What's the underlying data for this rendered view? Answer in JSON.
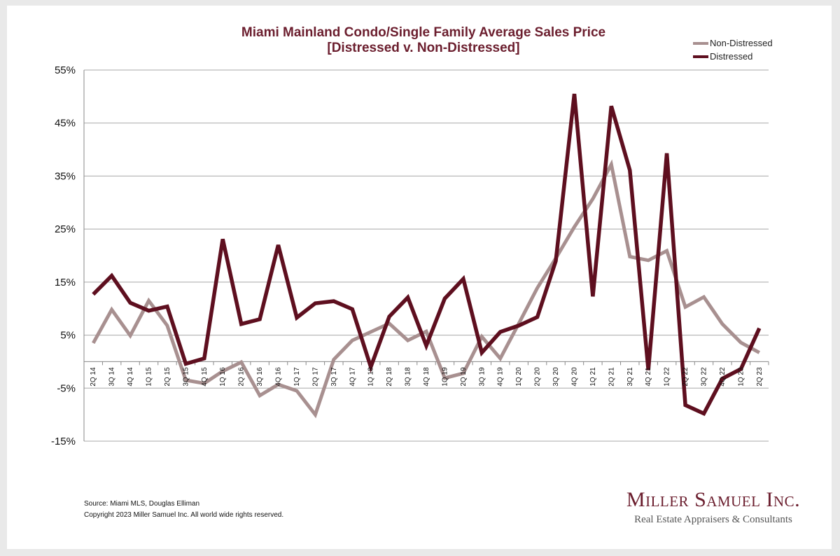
{
  "title_line1": "Miami Mainland Condo/Single Family Average Sales Price",
  "title_line2": "[Distressed v. Non-Distressed]",
  "source_line1": "Source: Miami MLS, Douglas Elliman",
  "source_line2": "Copyright 2023 Miller Samuel Inc.  All world wide rights reserved.",
  "brand_name": "Miller Samuel Inc.",
  "brand_subtitle": "Real Estate Appraisers & Consultants",
  "colors": {
    "non_distressed": "#a89090",
    "distressed": "#5e0f1f",
    "title": "#6b1e2e",
    "grid": "#a8a8a8"
  },
  "chart_data": {
    "type": "line",
    "title": "Miami Mainland Condo/Single Family Average Sales Price [Distressed v. Non-Distressed]",
    "xlabel": "",
    "ylabel": "",
    "ylim": [
      -15,
      55
    ],
    "yticks": [
      55,
      45,
      35,
      25,
      15,
      5,
      -5,
      -15
    ],
    "ytick_labels": [
      "55%",
      "45%",
      "35%",
      "25%",
      "15%",
      "5%",
      "-5%",
      "-15%"
    ],
    "grid": true,
    "legend_position": "top-right",
    "categories": [
      "2Q 14",
      "3Q 14",
      "4Q 14",
      "1Q 15",
      "2Q 15",
      "3Q 15",
      "4Q 15",
      "1Q 16",
      "2Q 16",
      "3Q 16",
      "4Q 16",
      "1Q 17",
      "2Q 17",
      "3Q 17",
      "4Q 17",
      "1Q 18",
      "2Q 18",
      "3Q 18",
      "4Q 18",
      "1Q 19",
      "2Q 19",
      "3Q 19",
      "4Q 19",
      "1Q 20",
      "2Q 20",
      "3Q 20",
      "4Q 20",
      "1Q 21",
      "2Q 21",
      "3Q 21",
      "4Q 21",
      "1Q 22",
      "2Q 22",
      "3Q 22",
      "4Q 22",
      "1Q 23",
      "2Q 23"
    ],
    "series": [
      {
        "name": "Non-Distressed",
        "values": [
          3.5,
          9.8,
          4.9,
          11.5,
          6.8,
          -3.5,
          -4.1,
          -1.8,
          -0.1,
          -6.4,
          -4.3,
          -5.5,
          -10.0,
          0.4,
          4.0,
          5.6,
          7.2,
          4.0,
          5.7,
          -3.1,
          -2.2,
          4.7,
          0.6,
          7.2,
          13.9,
          19.5,
          25.4,
          30.7,
          37.2,
          19.8,
          19.1,
          20.9,
          10.3,
          12.2,
          7.1,
          3.6,
          1.7
        ]
      },
      {
        "name": "Distressed",
        "values": [
          12.7,
          16.2,
          11.1,
          9.6,
          10.4,
          -0.4,
          0.6,
          23.1,
          7.1,
          8.0,
          22.0,
          8.3,
          11.0,
          11.4,
          9.9,
          -1.0,
          8.5,
          12.1,
          3.0,
          11.9,
          15.6,
          1.7,
          5.6,
          6.8,
          8.4,
          19.0,
          50.5,
          12.3,
          48.2,
          36.1,
          -1.6,
          39.3,
          -8.2,
          -9.8,
          -3.2,
          -1.4,
          6.3
        ]
      }
    ]
  }
}
